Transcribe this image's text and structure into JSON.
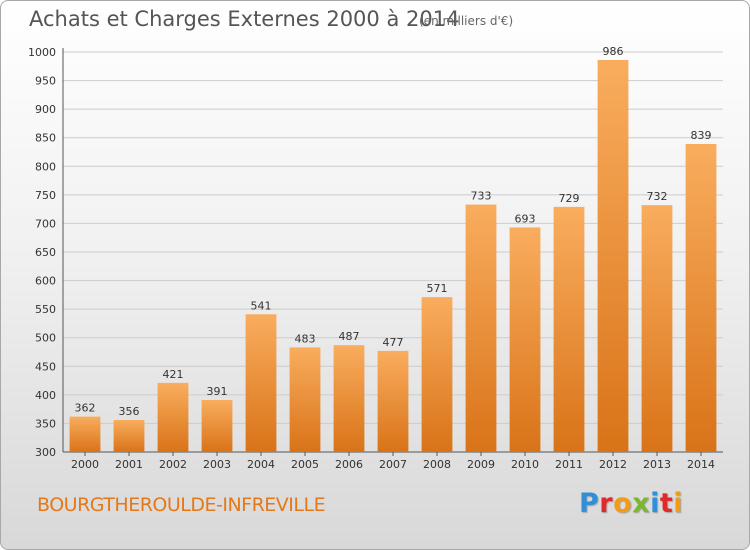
{
  "title": "Achats et Charges Externes 2000 à 2014",
  "subtitle": "(en milliers d'€)",
  "commune": "BOURGTHEROULDE-INFREVILLE",
  "logo": {
    "letters": [
      "P",
      "r",
      "o",
      "x",
      "i",
      "t",
      "i"
    ],
    "colors": [
      "#2f8fd8",
      "#e0292a",
      "#f29b16",
      "#7cb82f",
      "#2f8fd8",
      "#e0292a",
      "#f29b16"
    ]
  },
  "colors": {
    "bar_light": "#f9ad5e",
    "bar_dark": "#d97318",
    "grid": "#cccccc",
    "axis_text": "#333333"
  },
  "chart_data": {
    "type": "bar",
    "title": "Achats et Charges Externes 2000 à 2014",
    "subtitle": "(en milliers d'€)",
    "categories": [
      "2000",
      "2001",
      "2002",
      "2003",
      "2004",
      "2005",
      "2006",
      "2007",
      "2008",
      "2009",
      "2010",
      "2011",
      "2012",
      "2013",
      "2014"
    ],
    "values": [
      362,
      356,
      421,
      391,
      541,
      483,
      487,
      477,
      571,
      733,
      693,
      729,
      986,
      732,
      839
    ],
    "ylim": [
      300,
      1000
    ],
    "yticks": [
      300,
      350,
      400,
      450,
      500,
      550,
      600,
      650,
      700,
      750,
      800,
      850,
      900,
      950,
      1000
    ],
    "grid": true,
    "legend": "none"
  }
}
